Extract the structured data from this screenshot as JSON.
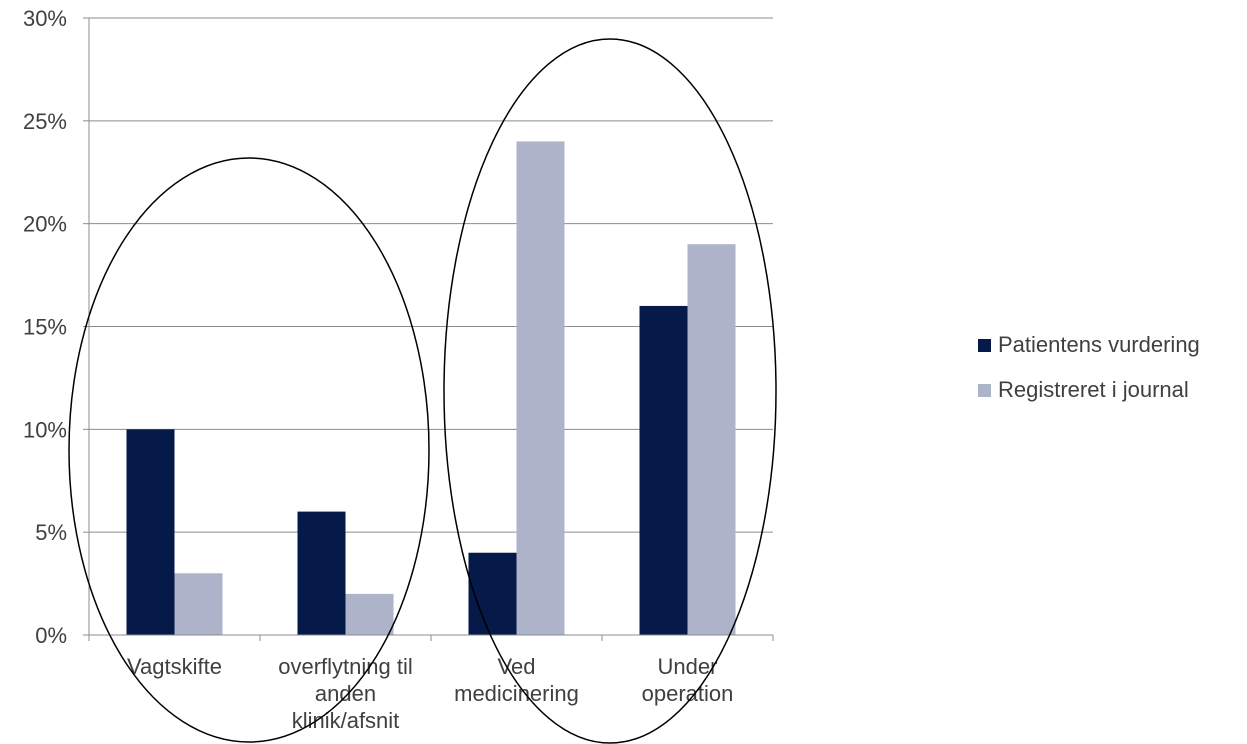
{
  "chart_data": {
    "type": "bar",
    "categories": [
      [
        "Vagtskifte"
      ],
      [
        "overflytning til",
        "anden",
        "klinik/afsnit"
      ],
      [
        "Ved",
        "medicinering"
      ],
      [
        "Under",
        "operation"
      ]
    ],
    "series": [
      {
        "name": "Patientens vurdering",
        "color": "#061A4A",
        "values": [
          0.1,
          0.06,
          0.04,
          0.16
        ]
      },
      {
        "name": "Registreret i journal",
        "color": "#ADB3C8",
        "values": [
          0.03,
          0.02,
          0.24,
          0.19
        ]
      }
    ],
    "ylim": [
      0,
      0.3
    ],
    "yticks": [
      0,
      0.05,
      0.1,
      0.15,
      0.2,
      0.25,
      0.3
    ],
    "ytick_labels": [
      "0%",
      "5%",
      "10%",
      "15%",
      "20%",
      "25%",
      "30%"
    ],
    "grid": true,
    "legend_position": "right",
    "annotations": [
      {
        "type": "ellipse",
        "encloses_categories": [
          0,
          1
        ]
      },
      {
        "type": "ellipse",
        "encloses_categories": [
          2,
          3
        ]
      }
    ]
  }
}
